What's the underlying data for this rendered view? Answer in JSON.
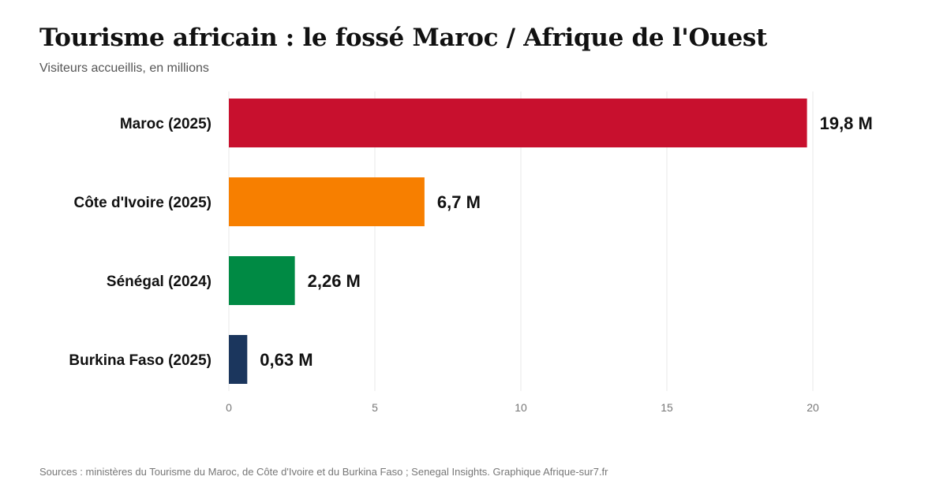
{
  "header": {
    "title": "Tourisme africain : le fossé Maroc / Afrique de l'Ouest",
    "subtitle": "Visiteurs accueillis, en millions"
  },
  "footer": {
    "source": "Sources : ministères du Tourisme du Maroc, de Côte d'Ivoire et du Burkina Faso ; Senegal Insights. Graphique Afrique-sur7.fr"
  },
  "chart_data": {
    "type": "bar",
    "orientation": "horizontal",
    "title": "Tourisme africain : le fossé Maroc / Afrique de l'Ouest",
    "subtitle": "Visiteurs accueillis, en millions",
    "categories": [
      "Maroc (2025)",
      "Côte d'Ivoire (2025)",
      "Sénégal (2024)",
      "Burkina Faso (2025)"
    ],
    "values": [
      19.8,
      6.7,
      2.26,
      0.63
    ],
    "value_labels": [
      "19,8 M",
      "6,7 M",
      "2,26 M",
      "0,63 M"
    ],
    "colors": [
      "#c8102e",
      "#f77f00",
      "#008a44",
      "#1b365d"
    ],
    "xticks": [
      0,
      5,
      10,
      15,
      20
    ],
    "xlim": [
      0,
      20
    ],
    "grid": "vertical",
    "legend": "none"
  }
}
